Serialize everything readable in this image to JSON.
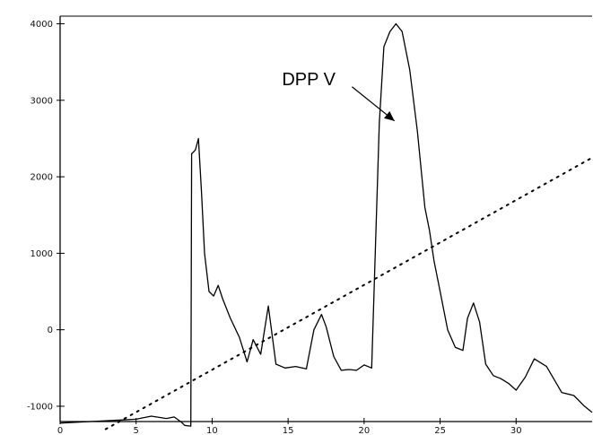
{
  "chart_data": {
    "type": "line",
    "title": "",
    "xlabel": "",
    "ylabel": "",
    "xlim": [
      0,
      35
    ],
    "ylim": [
      -1200,
      4100
    ],
    "grid": false,
    "legend": "none",
    "x_ticks": [
      0,
      5,
      10,
      15,
      20,
      25,
      30
    ],
    "x_tick_labels": [
      "0",
      "5",
      "10",
      "15",
      "20",
      "25",
      "30"
    ],
    "y_ticks": [
      -1000,
      0,
      1000,
      2000,
      3000,
      4000
    ],
    "y_tick_labels": [
      "-1000",
      "0",
      "1000",
      "2000",
      "3000",
      "4000"
    ],
    "series": [
      {
        "style": "solid",
        "color": "#000000",
        "x": [
          0,
          1,
          2,
          3,
          4,
          5,
          6,
          7,
          7.5,
          8,
          8.2,
          8.6,
          8.65,
          8.9,
          9.1,
          9.3,
          9.5,
          9.8,
          10.1,
          10.4,
          10.7,
          11.2,
          11.8,
          12.3,
          12.7,
          13.2,
          13.7,
          14.2,
          14.8,
          15.5,
          16.2,
          16.7,
          17.2,
          17.5,
          18.0,
          18.5,
          19.0,
          19.5,
          20.0,
          20.5,
          21.0,
          21.3,
          21.7,
          22.1,
          22.5,
          23.0,
          23.5,
          24.0,
          24.3,
          24.6,
          25.0,
          25.5,
          26.0,
          26.5,
          26.8,
          27.2,
          27.6,
          28.0,
          28.5,
          29.0,
          29.5,
          30.0,
          30.6,
          31.2,
          32.0,
          33.0,
          33.8,
          34.5,
          35.0
        ],
        "y": [
          -1220,
          -1210,
          -1200,
          -1190,
          -1180,
          -1170,
          -1130,
          -1160,
          -1140,
          -1210,
          -1250,
          -1260,
          2300,
          2350,
          2500,
          1800,
          1000,
          500,
          440,
          580,
          400,
          150,
          -100,
          -420,
          -130,
          -320,
          310,
          -450,
          -500,
          -480,
          -510,
          0,
          200,
          40,
          -350,
          -530,
          -520,
          -530,
          -460,
          -500,
          2700,
          3700,
          3900,
          4000,
          3900,
          3400,
          2600,
          1600,
          1300,
          900,
          500,
          0,
          -230,
          -270,
          150,
          350,
          100,
          -450,
          -600,
          -640,
          -700,
          -790,
          -620,
          -380,
          -480,
          -820,
          -860,
          -1000,
          -1080
        ]
      },
      {
        "style": "dotted",
        "color": "#000000",
        "x": [
          3,
          35
        ],
        "y": [
          -1300,
          2250
        ]
      }
    ],
    "annotations": [
      {
        "text": "DPP V",
        "x": 14.6,
        "y": 3200,
        "arrow_to": [
          22.0,
          2730
        ]
      }
    ]
  }
}
